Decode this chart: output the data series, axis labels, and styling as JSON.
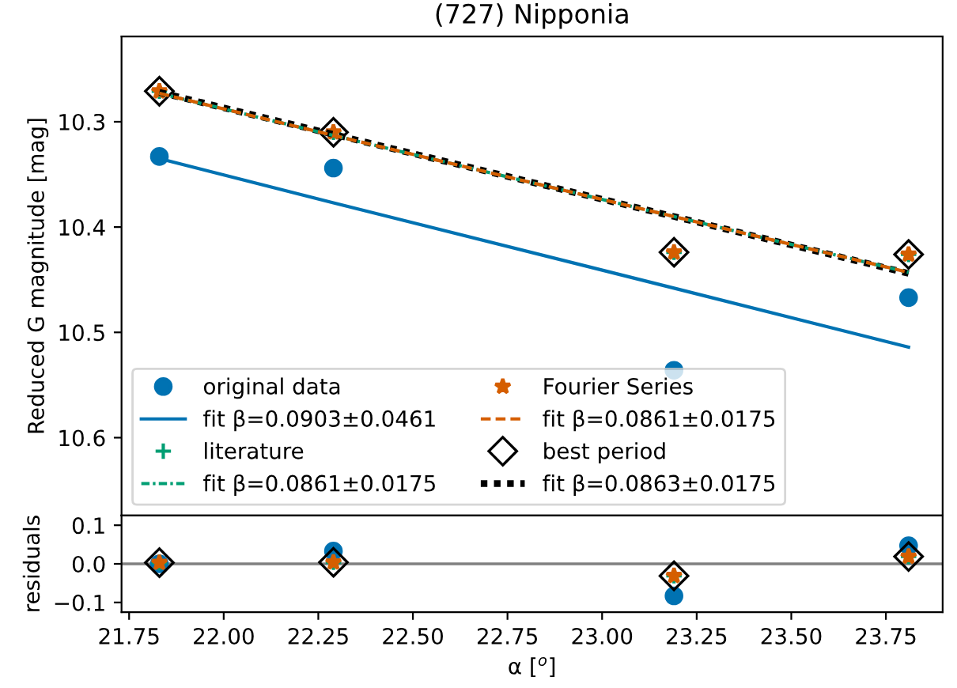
{
  "chart_data": [
    {
      "type": "scatter",
      "title": "(727) Nipponia",
      "ylabel": "Reduced G magnitude [mag]",
      "x": [
        21.83,
        22.29,
        23.19,
        23.81
      ],
      "xlim": [
        21.73,
        23.9
      ],
      "xticks": [
        21.75,
        22.0,
        22.25,
        22.5,
        22.75,
        23.0,
        23.25,
        23.5,
        23.75
      ],
      "ylim": [
        10.674,
        10.219
      ],
      "yticks": [
        10.3,
        10.4,
        10.5,
        10.6
      ],
      "tick_labels": "y",
      "grid": false,
      "legend": "bottom left",
      "series": [
        {
          "name": "original data",
          "marker": "circle",
          "color": "#0072b2",
          "values": [
            10.333,
            10.344,
            10.536,
            10.467
          ]
        },
        {
          "name": "fit β=0.0903±0.0461",
          "type": "line",
          "line_style": "solid",
          "color": "#0072b2",
          "values": [
            10.335,
            10.377,
            10.458,
            10.514
          ]
        },
        {
          "name": "literature",
          "marker": "cross",
          "color": "#009e73",
          "values": [
            10.271,
            10.31,
            10.424,
            10.426
          ]
        },
        {
          "name": "fit β=0.0861±0.0175",
          "type": "line",
          "line_style": "dashdot",
          "color": "#009e73",
          "values": [
            10.273,
            10.313,
            10.39,
            10.443
          ]
        },
        {
          "name": "Fourier Series",
          "marker": "star",
          "color": "#d55e00",
          "values": [
            10.271,
            10.31,
            10.424,
            10.426
          ]
        },
        {
          "name": "fit β=0.0861±0.0175",
          "type": "line",
          "line_style": "dashed",
          "color": "#d55e00",
          "values": [
            10.273,
            10.313,
            10.39,
            10.443
          ]
        },
        {
          "name": "best period",
          "marker": "diamond",
          "color": "#000000",
          "values": [
            10.271,
            10.31,
            10.424,
            10.426
          ]
        },
        {
          "name": "fit β=0.0863±0.0175",
          "type": "line",
          "line_style": "dotted",
          "color": "#000000",
          "values": [
            10.272,
            10.312,
            10.39,
            10.444
          ]
        }
      ]
    },
    {
      "type": "scatter",
      "ylabel": "residuals",
      "xlabel": "α [$^{o}$]",
      "x": [
        21.83,
        22.29,
        23.19,
        23.81
      ],
      "xlim": [
        21.73,
        23.9
      ],
      "xticks": [
        21.75,
        {
          "value": 22.0,
          "label": "22.00"
        },
        22.25,
        {
          "value": 22.5,
          "label": "22.50"
        },
        22.75,
        {
          "value": 23.0,
          "label": "23.00"
        },
        23.25,
        {
          "value": 23.5,
          "label": "23.50"
        },
        23.75
      ],
      "ylim": [
        -0.125,
        0.125
      ],
      "yticks": [
        {
          "value": -0.1,
          "label": "−0.1"
        },
        {
          "value": 0.0,
          "label": "0.0"
        },
        {
          "value": 0.1,
          "label": "0.1"
        }
      ],
      "grid": false,
      "legend": false,
      "ref_lines": [
        {
          "axis": "y",
          "value": 0,
          "color": "#808080"
        }
      ],
      "series": [
        {
          "marker": "circle",
          "color": "#0072b2",
          "values": [
            0.0,
            0.033,
            -0.083,
            0.047
          ]
        },
        {
          "marker": "cross",
          "color": "#009e73",
          "values": [
            0.003,
            0.004,
            -0.031,
            0.019
          ]
        },
        {
          "marker": "star",
          "color": "#d55e00",
          "values": [
            0.003,
            0.004,
            -0.031,
            0.019
          ]
        },
        {
          "marker": "diamond",
          "color": "#000000",
          "values": [
            0.003,
            0.004,
            -0.031,
            0.019
          ]
        }
      ]
    }
  ]
}
